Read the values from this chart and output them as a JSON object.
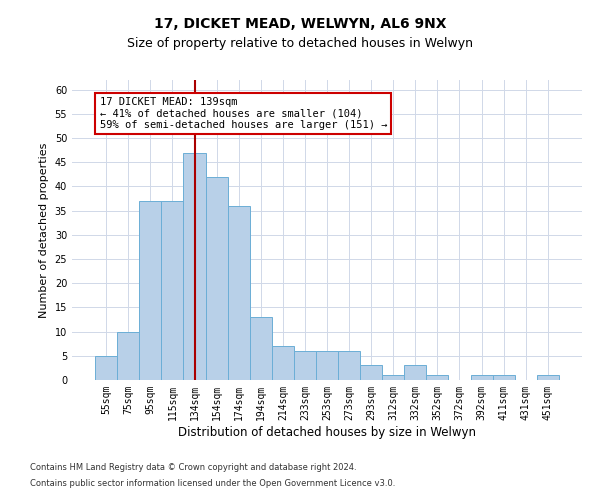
{
  "title1": "17, DICKET MEAD, WELWYN, AL6 9NX",
  "title2": "Size of property relative to detached houses in Welwyn",
  "xlabel": "Distribution of detached houses by size in Welwyn",
  "ylabel": "Number of detached properties",
  "categories": [
    "55sqm",
    "75sqm",
    "95sqm",
    "115sqm",
    "134sqm",
    "154sqm",
    "174sqm",
    "194sqm",
    "214sqm",
    "233sqm",
    "253sqm",
    "273sqm",
    "293sqm",
    "312sqm",
    "332sqm",
    "352sqm",
    "372sqm",
    "392sqm",
    "411sqm",
    "431sqm",
    "451sqm"
  ],
  "values": [
    5,
    10,
    37,
    37,
    47,
    42,
    36,
    13,
    7,
    6,
    6,
    6,
    3,
    1,
    3,
    1,
    0,
    1,
    1,
    0,
    1
  ],
  "bar_color": "#b8d0e8",
  "bar_edge_color": "#6baed6",
  "vline_index": 4,
  "vline_color": "#aa0000",
  "ylim": [
    0,
    62
  ],
  "yticks": [
    0,
    5,
    10,
    15,
    20,
    25,
    30,
    35,
    40,
    45,
    50,
    55,
    60
  ],
  "annotation_line1": "17 DICKET MEAD: 139sqm",
  "annotation_line2": "← 41% of detached houses are smaller (104)",
  "annotation_line3": "59% of semi-detached houses are larger (151) →",
  "annotation_box_color": "#ffffff",
  "annotation_box_edge": "#cc0000",
  "footer1": "Contains HM Land Registry data © Crown copyright and database right 2024.",
  "footer2": "Contains public sector information licensed under the Open Government Licence v3.0.",
  "bg_color": "#ffffff",
  "grid_color": "#d0d8e8",
  "title1_fontsize": 10,
  "title2_fontsize": 9,
  "tick_fontsize": 7,
  "ylabel_fontsize": 8,
  "xlabel_fontsize": 8.5,
  "annotation_fontsize": 7.5,
  "footer_fontsize": 6
}
